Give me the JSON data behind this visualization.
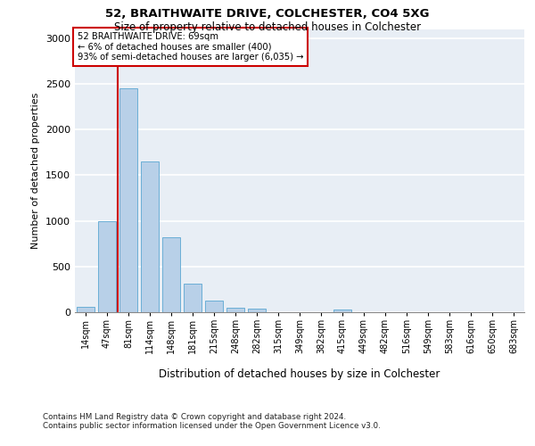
{
  "title1": "52, BRAITHWAITE DRIVE, COLCHESTER, CO4 5XG",
  "title2": "Size of property relative to detached houses in Colchester",
  "xlabel": "Distribution of detached houses by size in Colchester",
  "ylabel": "Number of detached properties",
  "bar_labels": [
    "14sqm",
    "47sqm",
    "81sqm",
    "114sqm",
    "148sqm",
    "181sqm",
    "215sqm",
    "248sqm",
    "282sqm",
    "315sqm",
    "349sqm",
    "382sqm",
    "415sqm",
    "449sqm",
    "482sqm",
    "516sqm",
    "549sqm",
    "583sqm",
    "616sqm",
    "650sqm",
    "683sqm"
  ],
  "bar_values": [
    60,
    1000,
    2450,
    1650,
    820,
    310,
    130,
    50,
    40,
    0,
    0,
    0,
    30,
    0,
    0,
    0,
    0,
    0,
    0,
    0,
    0
  ],
  "bar_color": "#b8d0e8",
  "bar_edgecolor": "#6aaed6",
  "vline_color": "#cc0000",
  "vline_pos": 1.5,
  "annotation_line1": "52 BRAITHWAITE DRIVE: 69sqm",
  "annotation_line2": "← 6% of detached houses are smaller (400)",
  "annotation_line3": "93% of semi-detached houses are larger (6,035) →",
  "annotation_box_edgecolor": "#cc0000",
  "ylim": [
    0,
    3100
  ],
  "yticks": [
    0,
    500,
    1000,
    1500,
    2000,
    2500,
    3000
  ],
  "bg_color": "#e8eef5",
  "footer1": "Contains HM Land Registry data © Crown copyright and database right 2024.",
  "footer2": "Contains public sector information licensed under the Open Government Licence v3.0."
}
